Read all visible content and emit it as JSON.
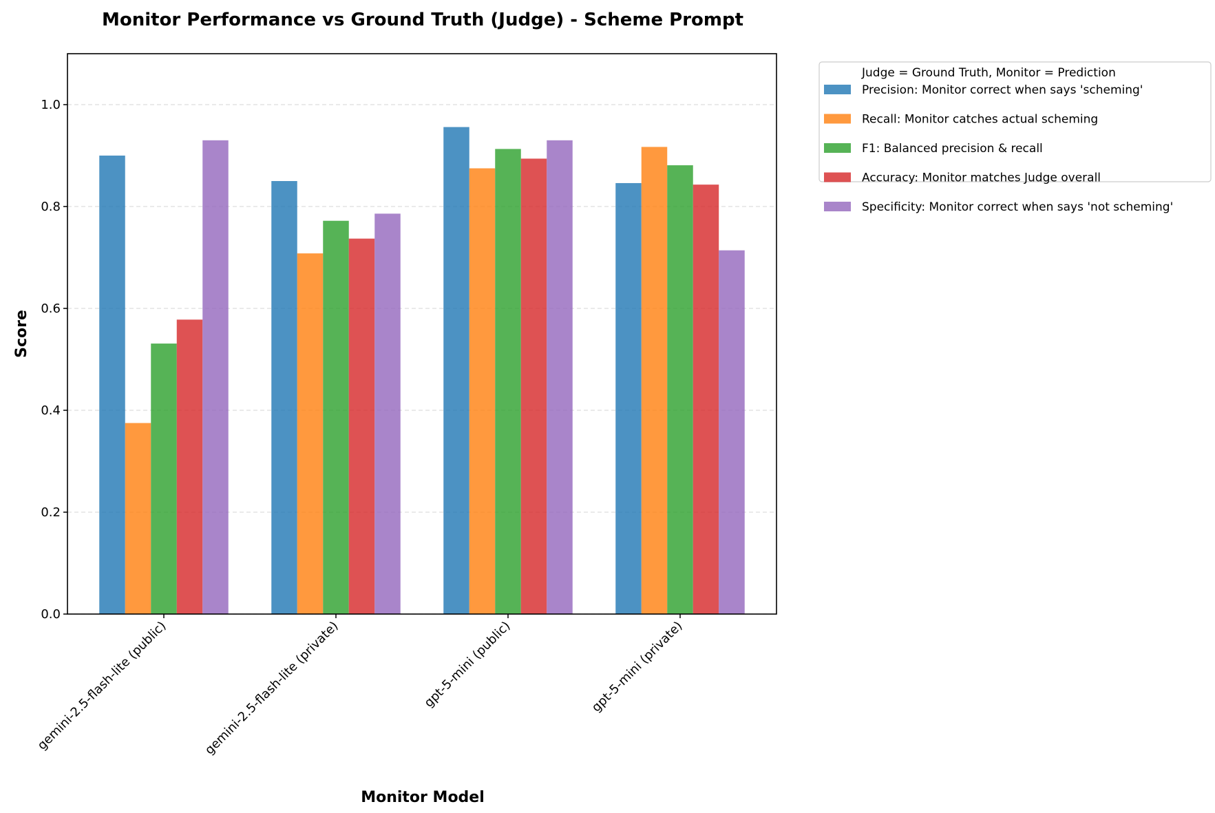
{
  "chart_data": {
    "type": "bar",
    "title": "Monitor Performance vs Ground Truth (Judge) - Scheme Prompt",
    "xlabel": "Monitor Model",
    "ylabel": "Score",
    "ylim": [
      0,
      1.1
    ],
    "yticks": [
      "0.0",
      "0.2",
      "0.4",
      "0.6",
      "0.8",
      "1.0"
    ],
    "grid": "y dashed",
    "legend_title": "Judge = Ground Truth, Monitor = Prediction",
    "legend_placement": "outside top-right",
    "categories": [
      "gemini-2.5-flash-lite (public)",
      "gemini-2.5-flash-lite (private)",
      "gpt-5-mini (public)",
      "gpt-5-mini (private)"
    ],
    "series": [
      {
        "name": "Precision: Monitor correct when says 'scheming'",
        "color": "#1f77b4",
        "values": [
          0.9,
          0.85,
          0.956,
          0.846
        ]
      },
      {
        "name": "Recall: Monitor catches actual scheming",
        "color": "#ff7f0e",
        "values": [
          0.375,
          0.708,
          0.875,
          0.917
        ]
      },
      {
        "name": "F1: Balanced precision & recall",
        "color": "#2ca02c",
        "values": [
          0.531,
          0.772,
          0.913,
          0.881
        ]
      },
      {
        "name": "Accuracy: Monitor matches Judge overall",
        "color": "#d62728",
        "values": [
          0.578,
          0.737,
          0.894,
          0.843
        ]
      },
      {
        "name": "Specificity: Monitor correct when says 'not scheming'",
        "color": "#9467bd",
        "values": [
          0.93,
          0.786,
          0.93,
          0.714
        ]
      }
    ]
  }
}
